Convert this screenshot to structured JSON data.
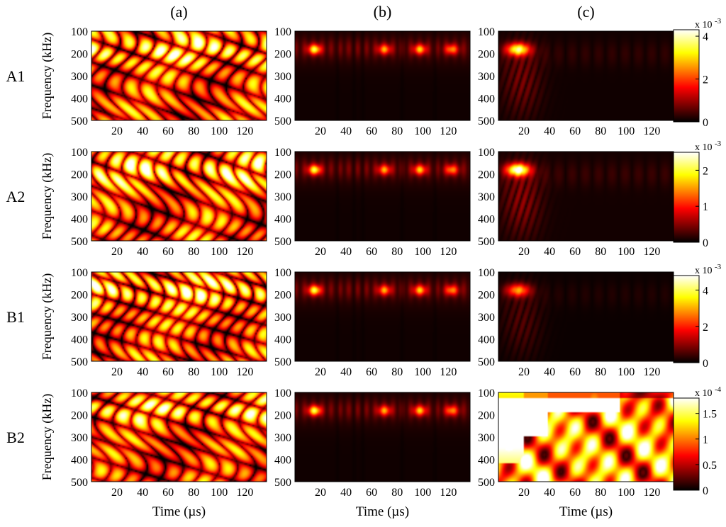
{
  "chart_data": {
    "type": "heatmap",
    "column_labels": [
      "(a)",
      "(b)",
      "(c)"
    ],
    "row_labels": [
      "A1",
      "A2",
      "B1",
      "B2"
    ],
    "xlabel": "Time (µs)",
    "ylabel": "Frequency (kHz)",
    "xlim": [
      0,
      137
    ],
    "ylim": [
      500,
      100
    ],
    "x_ticks": [
      20,
      40,
      60,
      80,
      100,
      120
    ],
    "y_ticks": [
      100,
      200,
      300,
      400,
      500
    ],
    "colormap": "hot",
    "colorbars": [
      {
        "row": "A1",
        "exponent_label": "x 10",
        "exponent": "-3",
        "max": 4.3,
        "ticks": [
          0,
          2,
          4
        ]
      },
      {
        "row": "A2",
        "exponent_label": "x 10",
        "exponent": "-3",
        "max": 2.5,
        "ticks": [
          0,
          1,
          2
        ]
      },
      {
        "row": "B1",
        "exponent_label": "x 10",
        "exponent": "-3",
        "max": 4.8,
        "ticks": [
          0,
          2,
          4
        ]
      },
      {
        "row": "B2",
        "exponent_label": "x 10",
        "exponent": "-4",
        "max": 1.8,
        "ticks": [
          0,
          0.5,
          1,
          1.5
        ]
      }
    ],
    "panels": [
      {
        "row": "A1",
        "column": "(a)",
        "pattern": "broadband-interference",
        "dominant_frequency_khz": 180,
        "relative_intensity": 0.95
      },
      {
        "row": "A1",
        "column": "(b)",
        "pattern": "bands-at-200kHz",
        "peak_times_us": [
          15,
          70,
          98,
          123
        ],
        "dominant_frequency_khz": 180,
        "relative_intensity": 0.8
      },
      {
        "row": "A1",
        "column": "(c)",
        "pattern": "single-early-peak",
        "peak_times_us": [
          15
        ],
        "dominant_frequency_khz": 180,
        "relative_intensity": 0.8
      },
      {
        "row": "A2",
        "column": "(a)",
        "pattern": "broadband-interference",
        "dominant_frequency_khz": 170,
        "relative_intensity": 0.95
      },
      {
        "row": "A2",
        "column": "(b)",
        "pattern": "bands-at-200kHz",
        "peak_times_us": [
          15,
          70,
          98,
          123
        ],
        "dominant_frequency_khz": 180,
        "relative_intensity": 0.8
      },
      {
        "row": "A2",
        "column": "(c)",
        "pattern": "single-early-peak",
        "peak_times_us": [
          15
        ],
        "dominant_frequency_khz": 180,
        "relative_intensity": 0.95
      },
      {
        "row": "B1",
        "column": "(a)",
        "pattern": "broadband-interference",
        "dominant_frequency_khz": 170,
        "relative_intensity": 0.95
      },
      {
        "row": "B1",
        "column": "(b)",
        "pattern": "bands-at-200kHz",
        "peak_times_us": [
          15,
          70,
          98,
          123
        ],
        "dominant_frequency_khz": 180,
        "relative_intensity": 0.8
      },
      {
        "row": "B1",
        "column": "(c)",
        "pattern": "single-early-peak",
        "peak_times_us": [
          15
        ],
        "dominant_frequency_khz": 175,
        "relative_intensity": 0.55
      },
      {
        "row": "B2",
        "column": "(a)",
        "pattern": "broadband-interference",
        "dominant_frequency_khz": 150,
        "relative_intensity": 0.9
      },
      {
        "row": "B2",
        "column": "(b)",
        "pattern": "bands-at-200kHz",
        "peak_times_us": [
          15,
          70,
          98,
          123
        ],
        "dominant_frequency_khz": 180,
        "relative_intensity": 0.8
      },
      {
        "row": "B2",
        "column": "(c)",
        "pattern": "saturated-broadband",
        "dominant_frequency_khz": 150,
        "relative_intensity": 1.0
      }
    ]
  }
}
